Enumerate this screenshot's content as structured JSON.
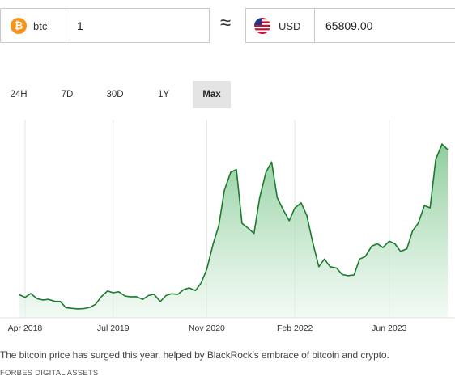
{
  "converter": {
    "from_currency": "btc",
    "from_amount": "1",
    "approx_symbol": "≈",
    "to_currency": "USD",
    "to_amount": "65809.00",
    "btc_icon_glyph": "₿",
    "from_icon": "bitcoin-icon",
    "to_icon": "us-flag-icon"
  },
  "range_tabs": [
    {
      "label": "24H",
      "active": false
    },
    {
      "label": "7D",
      "active": false
    },
    {
      "label": "30D",
      "active": false
    },
    {
      "label": "1Y",
      "active": false
    },
    {
      "label": "Max",
      "active": true
    }
  ],
  "chart_data": {
    "type": "area",
    "x_tick_labels": [
      "Apr 2018",
      "Jul 2019",
      "Nov 2020",
      "Feb 2022",
      "Jun 2023"
    ],
    "x_tick_positions": [
      2018.25,
      2019.5,
      2020.83,
      2022.08,
      2023.42
    ],
    "xlim": [
      2018.17,
      2024.25
    ],
    "ylabel": "",
    "ylim": [
      0,
      75000
    ],
    "grid": "vertical",
    "line_color": "#1a7a2e",
    "fill_color": "#8fd19e",
    "series": [
      {
        "x": [
          2018.17,
          2018.25,
          2018.33,
          2018.42,
          2018.5,
          2018.58,
          2018.67,
          2018.75,
          2018.83,
          2018.92,
          2019.0,
          2019.08,
          2019.17,
          2019.25,
          2019.33,
          2019.42,
          2019.5,
          2019.58,
          2019.67,
          2019.75,
          2019.83,
          2019.92,
          2020.0,
          2020.08,
          2020.17,
          2020.25,
          2020.33,
          2020.42,
          2020.5,
          2020.58,
          2020.67,
          2020.75,
          2020.83,
          2020.92,
          2021.0,
          2021.08,
          2021.17,
          2021.25,
          2021.33,
          2021.42,
          2021.5,
          2021.58,
          2021.67,
          2021.75,
          2021.83,
          2021.92,
          2022.0,
          2022.08,
          2022.17,
          2022.25,
          2022.33,
          2022.42,
          2022.5,
          2022.58,
          2022.67,
          2022.75,
          2022.83,
          2022.92,
          2023.0,
          2023.08,
          2023.17,
          2023.25,
          2023.33,
          2023.42,
          2023.5,
          2023.58,
          2023.67,
          2023.75,
          2023.83,
          2023.92,
          2024.0,
          2024.08,
          2024.17,
          2024.25
        ],
        "y": [
          9000,
          8000,
          9500,
          7500,
          7000,
          7200,
          6500,
          6400,
          4000,
          3700,
          3500,
          3600,
          4100,
          5300,
          8200,
          10500,
          9800,
          10200,
          8500,
          8200,
          8300,
          7200,
          8700,
          9200,
          6400,
          8700,
          9400,
          9200,
          11000,
          11700,
          10700,
          13700,
          19000,
          29000,
          36000,
          50000,
          57000,
          58000,
          37000,
          35000,
          33000,
          47000,
          57000,
          61000,
          47000,
          42000,
          38000,
          43000,
          45000,
          40000,
          30000,
          20000,
          23000,
          20000,
          19500,
          17000,
          16500,
          16800,
          23000,
          24000,
          28000,
          29000,
          27500,
          30000,
          29000,
          26000,
          27000,
          34000,
          37000,
          44000,
          43000,
          62000,
          68000,
          65809
        ]
      }
    ]
  },
  "caption": "The bitcoin price has surged this year, helped by BlackRock's embrace of bitcoin and crypto.",
  "credit": "FORBES DIGITAL ASSETS"
}
